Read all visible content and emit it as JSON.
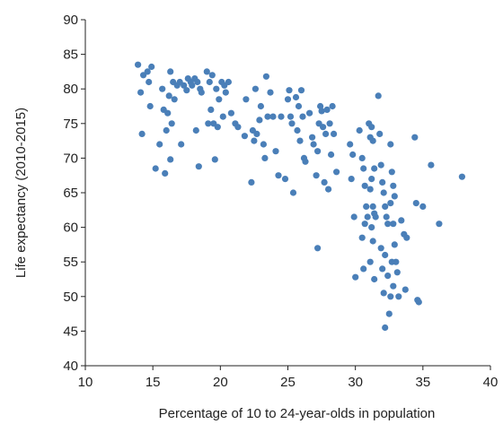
{
  "chart_data": {
    "type": "scatter",
    "title": "",
    "xlabel": "Percentage of 10 to 24-year-olds in population",
    "ylabel": "Life expectancy (2010-2015)",
    "xlim": [
      10,
      40
    ],
    "ylim": [
      40,
      90
    ],
    "xticks": [
      10,
      15,
      20,
      25,
      30,
      35,
      40
    ],
    "yticks": [
      40,
      45,
      50,
      55,
      60,
      65,
      70,
      75,
      80,
      85,
      90
    ],
    "grid": false,
    "legend": "none",
    "point_color": "#4a7fb8",
    "points": [
      [
        13.9,
        83.5
      ],
      [
        14.3,
        82
      ],
      [
        14.6,
        82.5
      ],
      [
        14.1,
        79.5
      ],
      [
        14.9,
        83.2
      ],
      [
        14.7,
        81
      ],
      [
        14.2,
        73.5
      ],
      [
        14.8,
        77.5
      ],
      [
        15.2,
        68.5
      ],
      [
        15.5,
        72
      ],
      [
        15.7,
        80
      ],
      [
        15.8,
        77
      ],
      [
        16,
        74
      ],
      [
        16.3,
        82.5
      ],
      [
        16.2,
        79
      ],
      [
        16.5,
        81
      ],
      [
        16.1,
        76.5
      ],
      [
        16.4,
        75
      ],
      [
        16.6,
        78.5
      ],
      [
        15.9,
        67.8
      ],
      [
        16.3,
        69.8
      ],
      [
        16.8,
        80.5
      ],
      [
        17,
        81
      ],
      [
        17.3,
        80.5
      ],
      [
        17.1,
        72
      ],
      [
        17.6,
        81.5
      ],
      [
        17.8,
        81
      ],
      [
        17.9,
        80.5
      ],
      [
        18.1,
        81.5
      ],
      [
        18.3,
        81
      ],
      [
        18.5,
        80
      ],
      [
        18.6,
        79.5
      ],
      [
        18.2,
        74
      ],
      [
        18.4,
        68.8
      ],
      [
        17.5,
        79.8
      ],
      [
        19,
        82.5
      ],
      [
        19.2,
        81
      ],
      [
        19.4,
        82
      ],
      [
        19.3,
        77
      ],
      [
        19.5,
        75
      ],
      [
        19.7,
        80
      ],
      [
        19.8,
        74.5
      ],
      [
        19.9,
        78.5
      ],
      [
        20.1,
        81
      ],
      [
        20.3,
        80.5
      ],
      [
        20.4,
        79.5
      ],
      [
        20.2,
        76
      ],
      [
        19.6,
        69.8
      ],
      [
        19.1,
        75
      ],
      [
        20.6,
        81
      ],
      [
        20.8,
        76.5
      ],
      [
        21.1,
        75
      ],
      [
        21.3,
        74.5
      ],
      [
        21.8,
        73.2
      ],
      [
        21.9,
        78.5
      ],
      [
        22.3,
        66.5
      ],
      [
        22.4,
        74
      ],
      [
        22.6,
        80
      ],
      [
        22.9,
        75.5
      ],
      [
        22.7,
        73.5
      ],
      [
        22.5,
        72.5
      ],
      [
        23,
        77.5
      ],
      [
        23.2,
        72
      ],
      [
        23.4,
        81.8
      ],
      [
        23.5,
        76
      ],
      [
        23.3,
        70
      ],
      [
        23.7,
        79.5
      ],
      [
        23.9,
        76
      ],
      [
        24.1,
        71
      ],
      [
        24.3,
        67.5
      ],
      [
        24.5,
        76
      ],
      [
        24.8,
        67
      ],
      [
        25,
        78.5
      ],
      [
        25.1,
        79.8
      ],
      [
        25.2,
        76
      ],
      [
        25.3,
        75
      ],
      [
        25.4,
        65
      ],
      [
        25.6,
        78.8
      ],
      [
        25.7,
        74
      ],
      [
        25.8,
        77.5
      ],
      [
        25.9,
        72.5
      ],
      [
        26,
        79.8
      ],
      [
        26.1,
        76
      ],
      [
        26.2,
        70
      ],
      [
        26.3,
        69.5
      ],
      [
        26.6,
        76.5
      ],
      [
        26.8,
        73
      ],
      [
        26.9,
        72
      ],
      [
        27.2,
        71
      ],
      [
        27.3,
        75
      ],
      [
        27.4,
        77.5
      ],
      [
        27.5,
        76.8
      ],
      [
        27.6,
        74.5
      ],
      [
        27.8,
        73.5
      ],
      [
        27.9,
        77
      ],
      [
        28.1,
        75
      ],
      [
        28.2,
        70.5
      ],
      [
        27.7,
        66.5
      ],
      [
        28,
        65.5
      ],
      [
        27.1,
        67.5
      ],
      [
        27.2,
        57
      ],
      [
        28.3,
        77.5
      ],
      [
        28.4,
        73.5
      ],
      [
        28.6,
        68
      ],
      [
        29.6,
        72
      ],
      [
        29.8,
        70.5
      ],
      [
        29.7,
        67
      ],
      [
        29.9,
        61.5
      ],
      [
        30,
        52.8
      ],
      [
        30.3,
        74
      ],
      [
        30.5,
        70
      ],
      [
        30.6,
        68.5
      ],
      [
        30.7,
        66
      ],
      [
        30.8,
        63
      ],
      [
        30.9,
        61.5
      ],
      [
        30.7,
        60.5
      ],
      [
        30.5,
        58.5
      ],
      [
        30.6,
        54
      ],
      [
        31,
        75
      ],
      [
        31.1,
        73
      ],
      [
        31.2,
        74.5
      ],
      [
        31.3,
        72.5
      ],
      [
        31.4,
        68.5
      ],
      [
        31.2,
        67
      ],
      [
        31.1,
        65.5
      ],
      [
        31.3,
        63
      ],
      [
        31.4,
        62
      ],
      [
        31.5,
        61.5
      ],
      [
        31.2,
        60
      ],
      [
        31.3,
        58
      ],
      [
        31.1,
        55
      ],
      [
        31.4,
        52.5
      ],
      [
        31.7,
        79
      ],
      [
        31.8,
        73.5
      ],
      [
        31.9,
        69
      ],
      [
        32,
        66.5
      ],
      [
        32.1,
        65
      ],
      [
        32.2,
        63
      ],
      [
        32.3,
        61.5
      ],
      [
        32.4,
        60.5
      ],
      [
        31.9,
        57
      ],
      [
        32.2,
        56
      ],
      [
        32.4,
        53
      ],
      [
        32,
        54
      ],
      [
        32.1,
        50.5
      ],
      [
        32.5,
        47.5
      ],
      [
        32.2,
        45.5
      ],
      [
        32.6,
        72
      ],
      [
        32.7,
        68
      ],
      [
        32.8,
        66
      ],
      [
        32.9,
        64.5
      ],
      [
        32.6,
        63.5
      ],
      [
        32.8,
        60.5
      ],
      [
        32.9,
        57.5
      ],
      [
        33,
        55
      ],
      [
        32.7,
        55
      ],
      [
        33.1,
        53.5
      ],
      [
        32.6,
        50
      ],
      [
        32.8,
        51.5
      ],
      [
        33.2,
        50
      ],
      [
        33.4,
        61
      ],
      [
        33.6,
        59
      ],
      [
        33.8,
        58.5
      ],
      [
        33.7,
        51
      ],
      [
        34.4,
        73
      ],
      [
        34.5,
        63.5
      ],
      [
        34.6,
        49.5
      ],
      [
        34.7,
        49.2
      ],
      [
        35,
        63
      ],
      [
        35.6,
        69
      ],
      [
        36.2,
        60.5
      ],
      [
        37.9,
        67.3
      ]
    ]
  }
}
